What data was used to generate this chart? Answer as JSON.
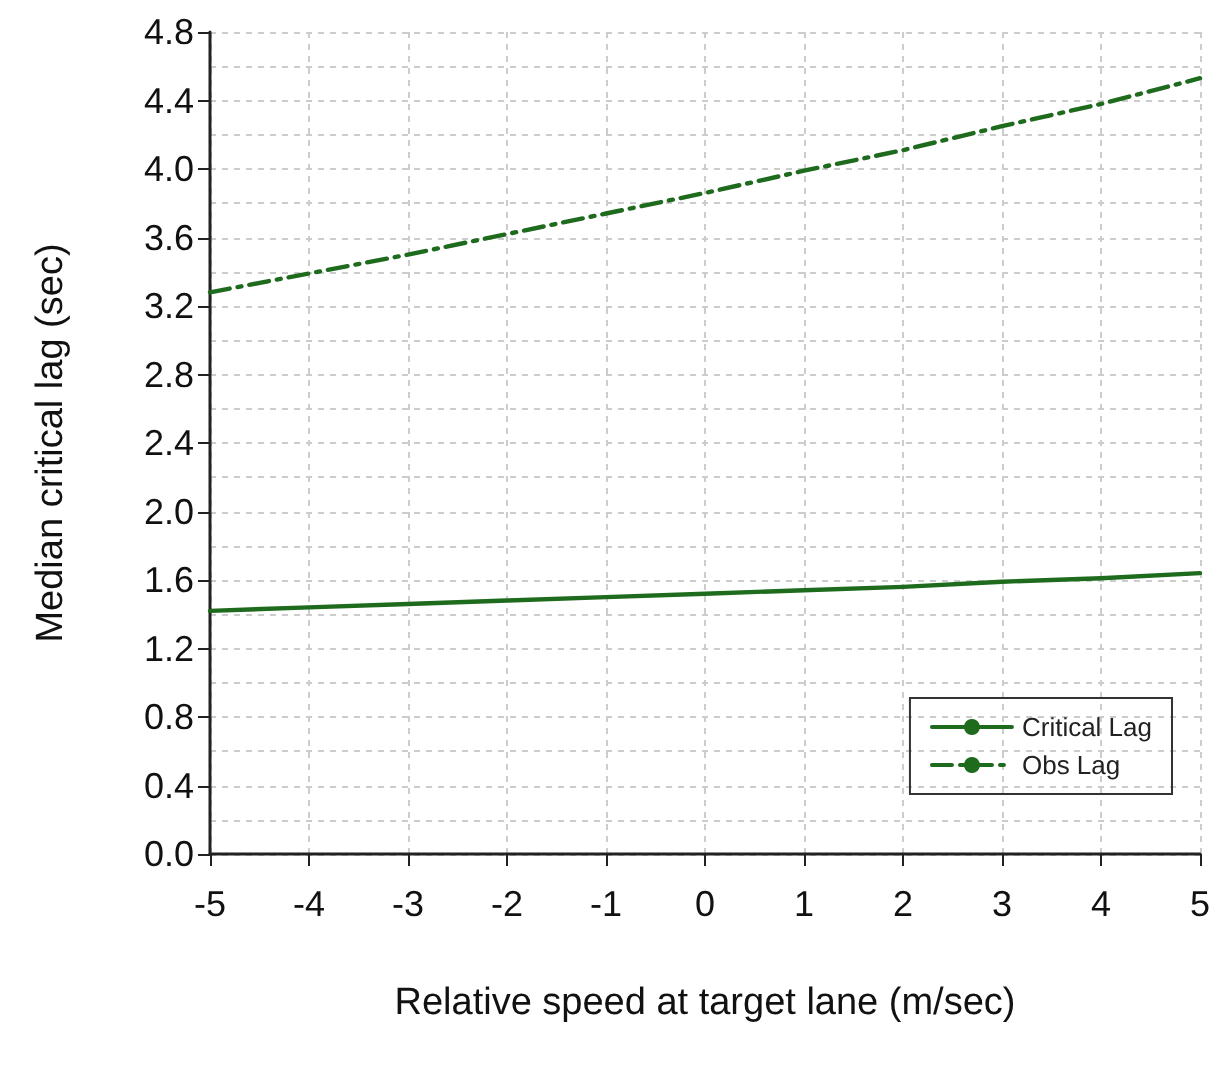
{
  "chart_data": {
    "type": "line",
    "xlabel": "Relative speed at target lane (m/sec)",
    "ylabel": "Median critical lag (sec)",
    "x": [
      -5,
      -4,
      -3,
      -2,
      -1,
      0,
      1,
      2,
      3,
      4,
      5
    ],
    "series": [
      {
        "name": "Critical Lag",
        "color": "#1e6b1e",
        "line_style": "solid",
        "values": [
          1.42,
          1.44,
          1.46,
          1.48,
          1.5,
          1.52,
          1.54,
          1.56,
          1.59,
          1.61,
          1.64
        ]
      },
      {
        "name": "Obs Lag",
        "color": "#1e6b1e",
        "line_style": "dashed",
        "values": [
          3.28,
          3.39,
          3.5,
          3.62,
          3.74,
          3.86,
          3.99,
          4.11,
          4.25,
          4.38,
          4.53
        ]
      }
    ],
    "xlim": [
      -5,
      5
    ],
    "xticks": [
      -5,
      -4,
      -3,
      -2,
      -1,
      0,
      1,
      2,
      3,
      4,
      5
    ],
    "ylim": [
      0,
      4.8
    ],
    "yticks": [
      {
        "value": 0,
        "label": "0.0"
      },
      {
        "value": 0.2,
        "label": null
      },
      {
        "value": 0.4,
        "label": "0.4"
      },
      {
        "value": 0.6,
        "label": null
      },
      {
        "value": 0.8,
        "label": "0.8"
      },
      {
        "value": 1.0,
        "label": null
      },
      {
        "value": 1.2,
        "label": "1.2"
      },
      {
        "value": 1.4,
        "label": null
      },
      {
        "value": 1.6,
        "label": "1.6"
      },
      {
        "value": 1.8,
        "label": null
      },
      {
        "value": 2.0,
        "label": "2.0"
      },
      {
        "value": 2.2,
        "label": null
      },
      {
        "value": 2.4,
        "label": "2.4"
      },
      {
        "value": 2.6,
        "label": null
      },
      {
        "value": 2.8,
        "label": "2.8"
      },
      {
        "value": 3.0,
        "label": null
      },
      {
        "value": 3.2,
        "label": "3.2"
      },
      {
        "value": 3.4,
        "label": null
      },
      {
        "value": 3.6,
        "label": "3.6"
      },
      {
        "value": 3.8,
        "label": null
      },
      {
        "value": 4.0,
        "label": "4.0"
      },
      {
        "value": 4.2,
        "label": null
      },
      {
        "value": 4.4,
        "label": "4.4"
      },
      {
        "value": 4.6,
        "label": null
      },
      {
        "value": 4.8,
        "label": "4.8"
      }
    ],
    "grid": true,
    "legend": "bottom right",
    "marker": "none"
  }
}
